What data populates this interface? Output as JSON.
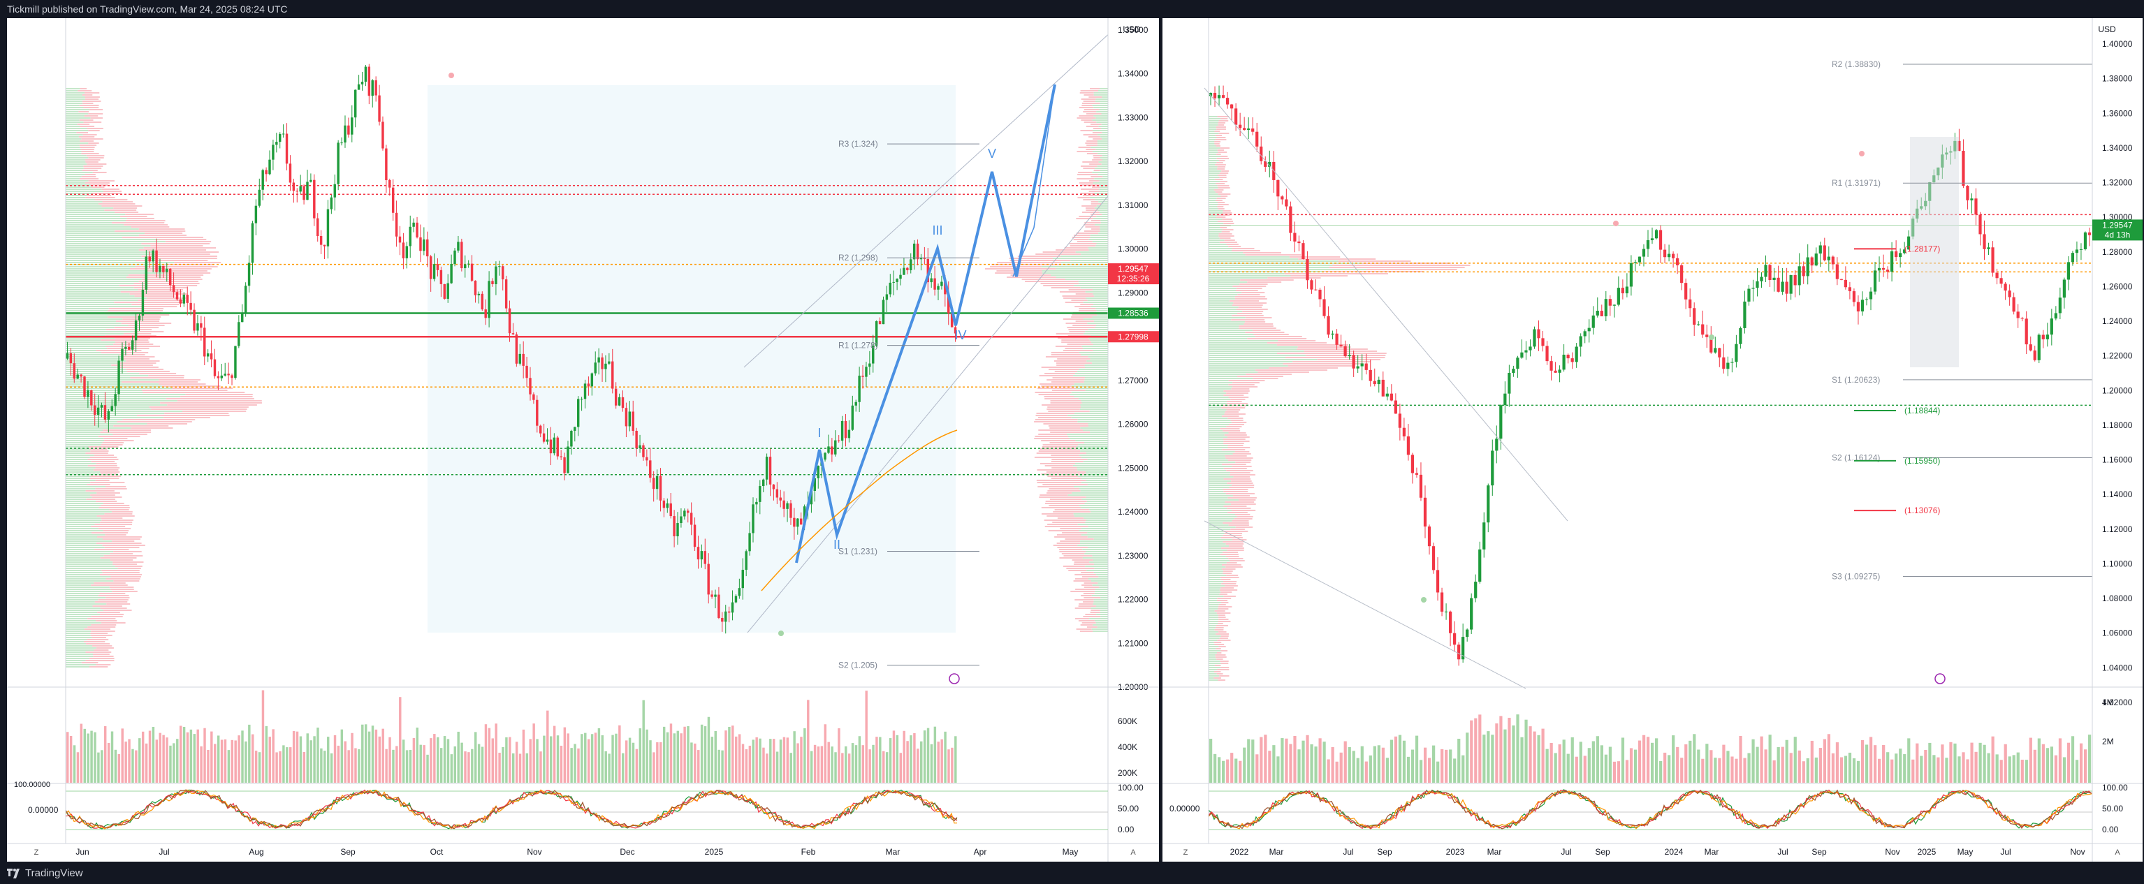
{
  "header": {
    "publish_text": "Tickmill published on TradingView.com, Mar 24, 2025 08:24 UTC"
  },
  "footer": {
    "brand": "TradingView"
  },
  "colors": {
    "up": "#26a69a",
    "up_candle": "#1e9b3b",
    "down": "#f23645",
    "vol_up": "#a5d6a7",
    "vol_down": "#f7a9b0",
    "accent_blue": "#4a90e2",
    "orange": "#ff9800"
  },
  "left_chart": {
    "currency": "USD",
    "price_ticks": [
      "1.35000",
      "1.34000",
      "1.33000",
      "1.32000",
      "1.31000",
      "1.30000",
      "1.29000",
      "1.28000",
      "1.27000",
      "1.26000",
      "1.25000",
      "1.24000",
      "1.23000",
      "1.22000",
      "1.21000",
      "1.20000"
    ],
    "time_ticks": [
      "Jun",
      "Jul",
      "Aug",
      "Sep",
      "Oct",
      "Nov",
      "Dec",
      "2025",
      "Feb",
      "Mar",
      "Apr",
      "May"
    ],
    "pivots": [
      {
        "label": "R3 (1.324)",
        "value": 1.324
      },
      {
        "label": "R2 (1.298)",
        "value": 1.298
      },
      {
        "label": "R1 (1.278)",
        "value": 1.278
      },
      {
        "label": "S1 (1.231)",
        "value": 1.231
      },
      {
        "label": "S2 (1.205)",
        "value": 1.205
      }
    ],
    "wave_labels": [
      "I",
      "II",
      "III",
      "IV",
      "V"
    ],
    "price_badges": [
      {
        "text": "1.29547",
        "sub": "12:35:26",
        "color": "#f23645",
        "value": 1.29547
      },
      {
        "text": "1.28536",
        "color": "#1e9b3b",
        "value": 1.28536
      },
      {
        "text": "1.27998",
        "color": "#f23645",
        "value": 1.27998
      }
    ],
    "volume_ticks": [
      "600K",
      "400K",
      "200K"
    ],
    "osc_ticks": [
      "100.00",
      "50.00",
      "0.00"
    ],
    "osc_left_ticks": [
      "100.00000",
      "0.00000"
    ],
    "footer_left": "Z",
    "footer_right": "A"
  },
  "right_chart": {
    "currency": "USD",
    "price_ticks": [
      "1.40000",
      "1.38000",
      "1.36000",
      "1.34000",
      "1.32000",
      "1.30000",
      "1.28000",
      "1.26000",
      "1.24000",
      "1.22000",
      "1.20000",
      "1.18000",
      "1.16000",
      "1.14000",
      "1.12000",
      "1.10000",
      "1.08000",
      "1.06000",
      "1.04000",
      "1.02000"
    ],
    "time_ticks": [
      "2022",
      "Mar",
      "Jul",
      "Sep",
      "2023",
      "Mar",
      "Jul",
      "Sep",
      "2024",
      "Mar",
      "Jul",
      "Sep",
      "Nov",
      "2025",
      "May",
      "Jul",
      "Nov"
    ],
    "pivots": [
      {
        "label": "R2 (1.38830)",
        "value": 1.3883
      },
      {
        "label": "R1 (1.31971)",
        "value": 1.31971
      },
      {
        "label": "S1 (1.20623)",
        "value": 1.20623
      },
      {
        "label": "S2 (1.16124)",
        "value": 1.16124
      },
      {
        "label": "S3 (1.09275)",
        "value": 1.09275
      }
    ],
    "levels": [
      {
        "label": "(1.28177)",
        "color": "#f23645",
        "value": 1.28177
      },
      {
        "label": "(1.18844)",
        "color": "#1e9b3b",
        "value": 1.18844
      },
      {
        "label": "(1.15950)",
        "color": "#1e9b3b",
        "value": 1.1595
      },
      {
        "label": "(1.13076)",
        "color": "#f23645",
        "value": 1.13076
      }
    ],
    "price_badge": {
      "text": "1.29547",
      "sub": "4d 13h",
      "color": "#1e9b3b",
      "value": 1.29547
    },
    "volume_ticks": [
      "4M",
      "2M"
    ],
    "osc_ticks": [
      "100.00",
      "50.00",
      "0.00"
    ],
    "osc_left_ticks": [
      "0.00000"
    ],
    "footer_left": "Z",
    "footer_right": "A"
  }
}
